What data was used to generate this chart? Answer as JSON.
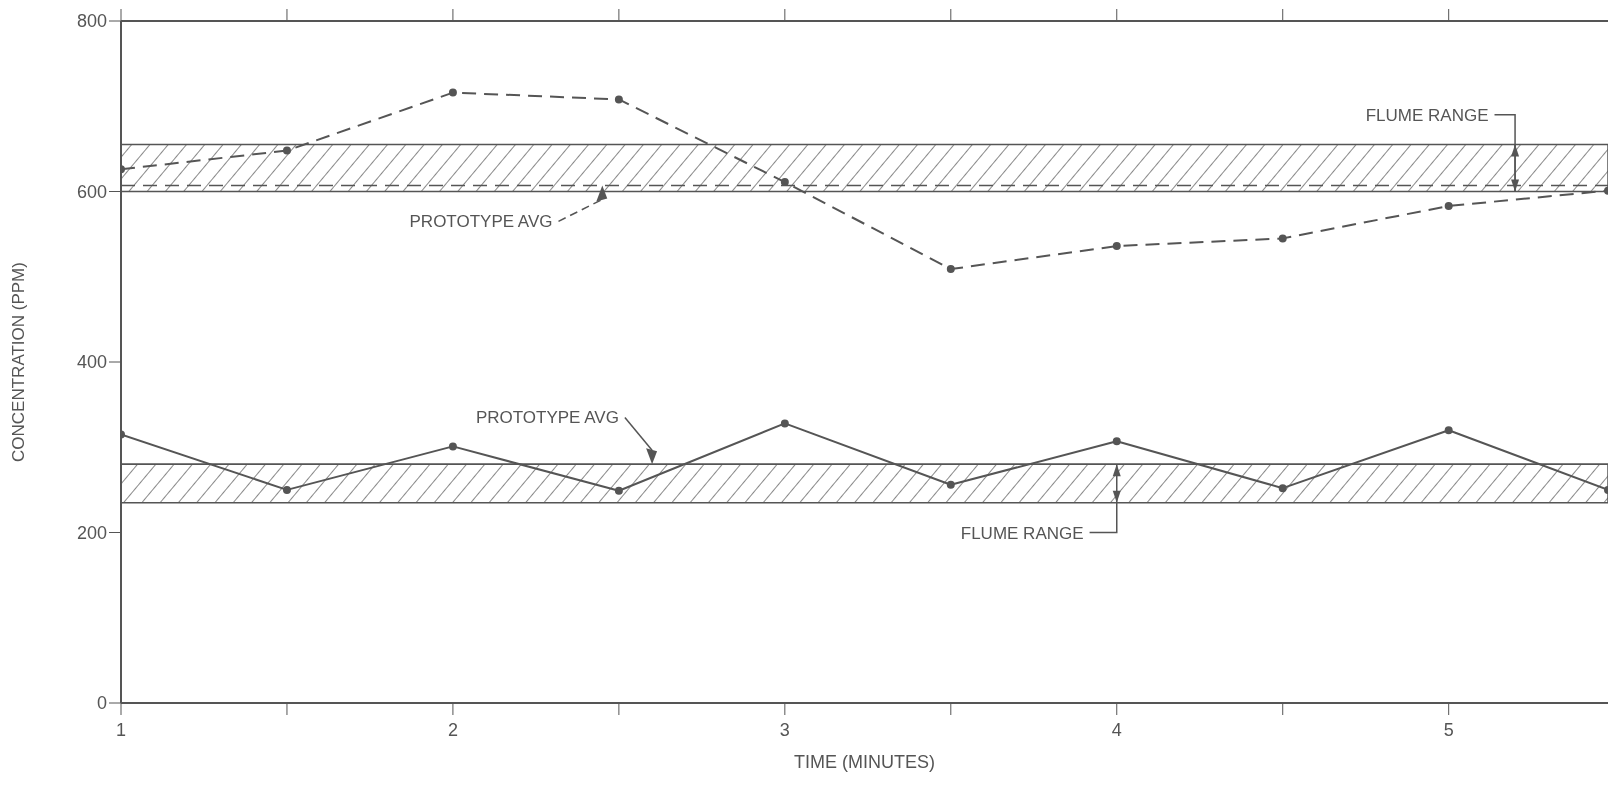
{
  "chart_data": {
    "type": "line",
    "xlabel": "TIME (MINUTES)",
    "ylabel": "CONCENTRATION (PPM)",
    "xlim": [
      1,
      5.48
    ],
    "xticks": [
      1,
      {
        "value": 1.5,
        "label": null
      },
      2,
      {
        "value": 2.5,
        "label": null
      },
      3,
      {
        "value": 3.5,
        "label": null
      },
      4,
      {
        "value": 4.5,
        "label": null
      },
      5
    ],
    "ylim": [
      0,
      800
    ],
    "yticks": [
      0,
      200,
      400,
      600,
      800
    ],
    "grid": false,
    "marker": "circle",
    "series": [
      {
        "color": "#555555",
        "line_style": "dashed",
        "x": [
          1,
          1.5,
          2,
          2.5,
          3,
          3.5,
          4,
          4.5,
          5,
          5.48
        ],
        "values": [
          626,
          648,
          716,
          708,
          611,
          509,
          536,
          545,
          583,
          601
        ]
      },
      {
        "color": "#555555",
        "line_style": "solid",
        "x": [
          1,
          1.5,
          2,
          2.5,
          3,
          3.5,
          4,
          4.5,
          5,
          5.48
        ],
        "values": [
          315,
          250,
          301,
          249,
          328,
          256,
          307,
          252,
          320,
          250
        ]
      }
    ],
    "ref_lines": [
      {
        "axis": "y",
        "value": 607,
        "label": "PROTOTYPE AVG",
        "line_style": "dashed",
        "color": "#555555"
      },
      {
        "axis": "y",
        "value": 280,
        "label": "PROTOTYPE AVG",
        "line_style": "solid",
        "color": "#555555"
      }
    ],
    "bands": [
      {
        "axis": "y",
        "from": 600,
        "to": 655,
        "label": "FLUME RANGE",
        "color": "#555555"
      },
      {
        "axis": "y",
        "from": 235,
        "to": 280,
        "label": "FLUME RANGE",
        "color": "#555555"
      }
    ]
  }
}
